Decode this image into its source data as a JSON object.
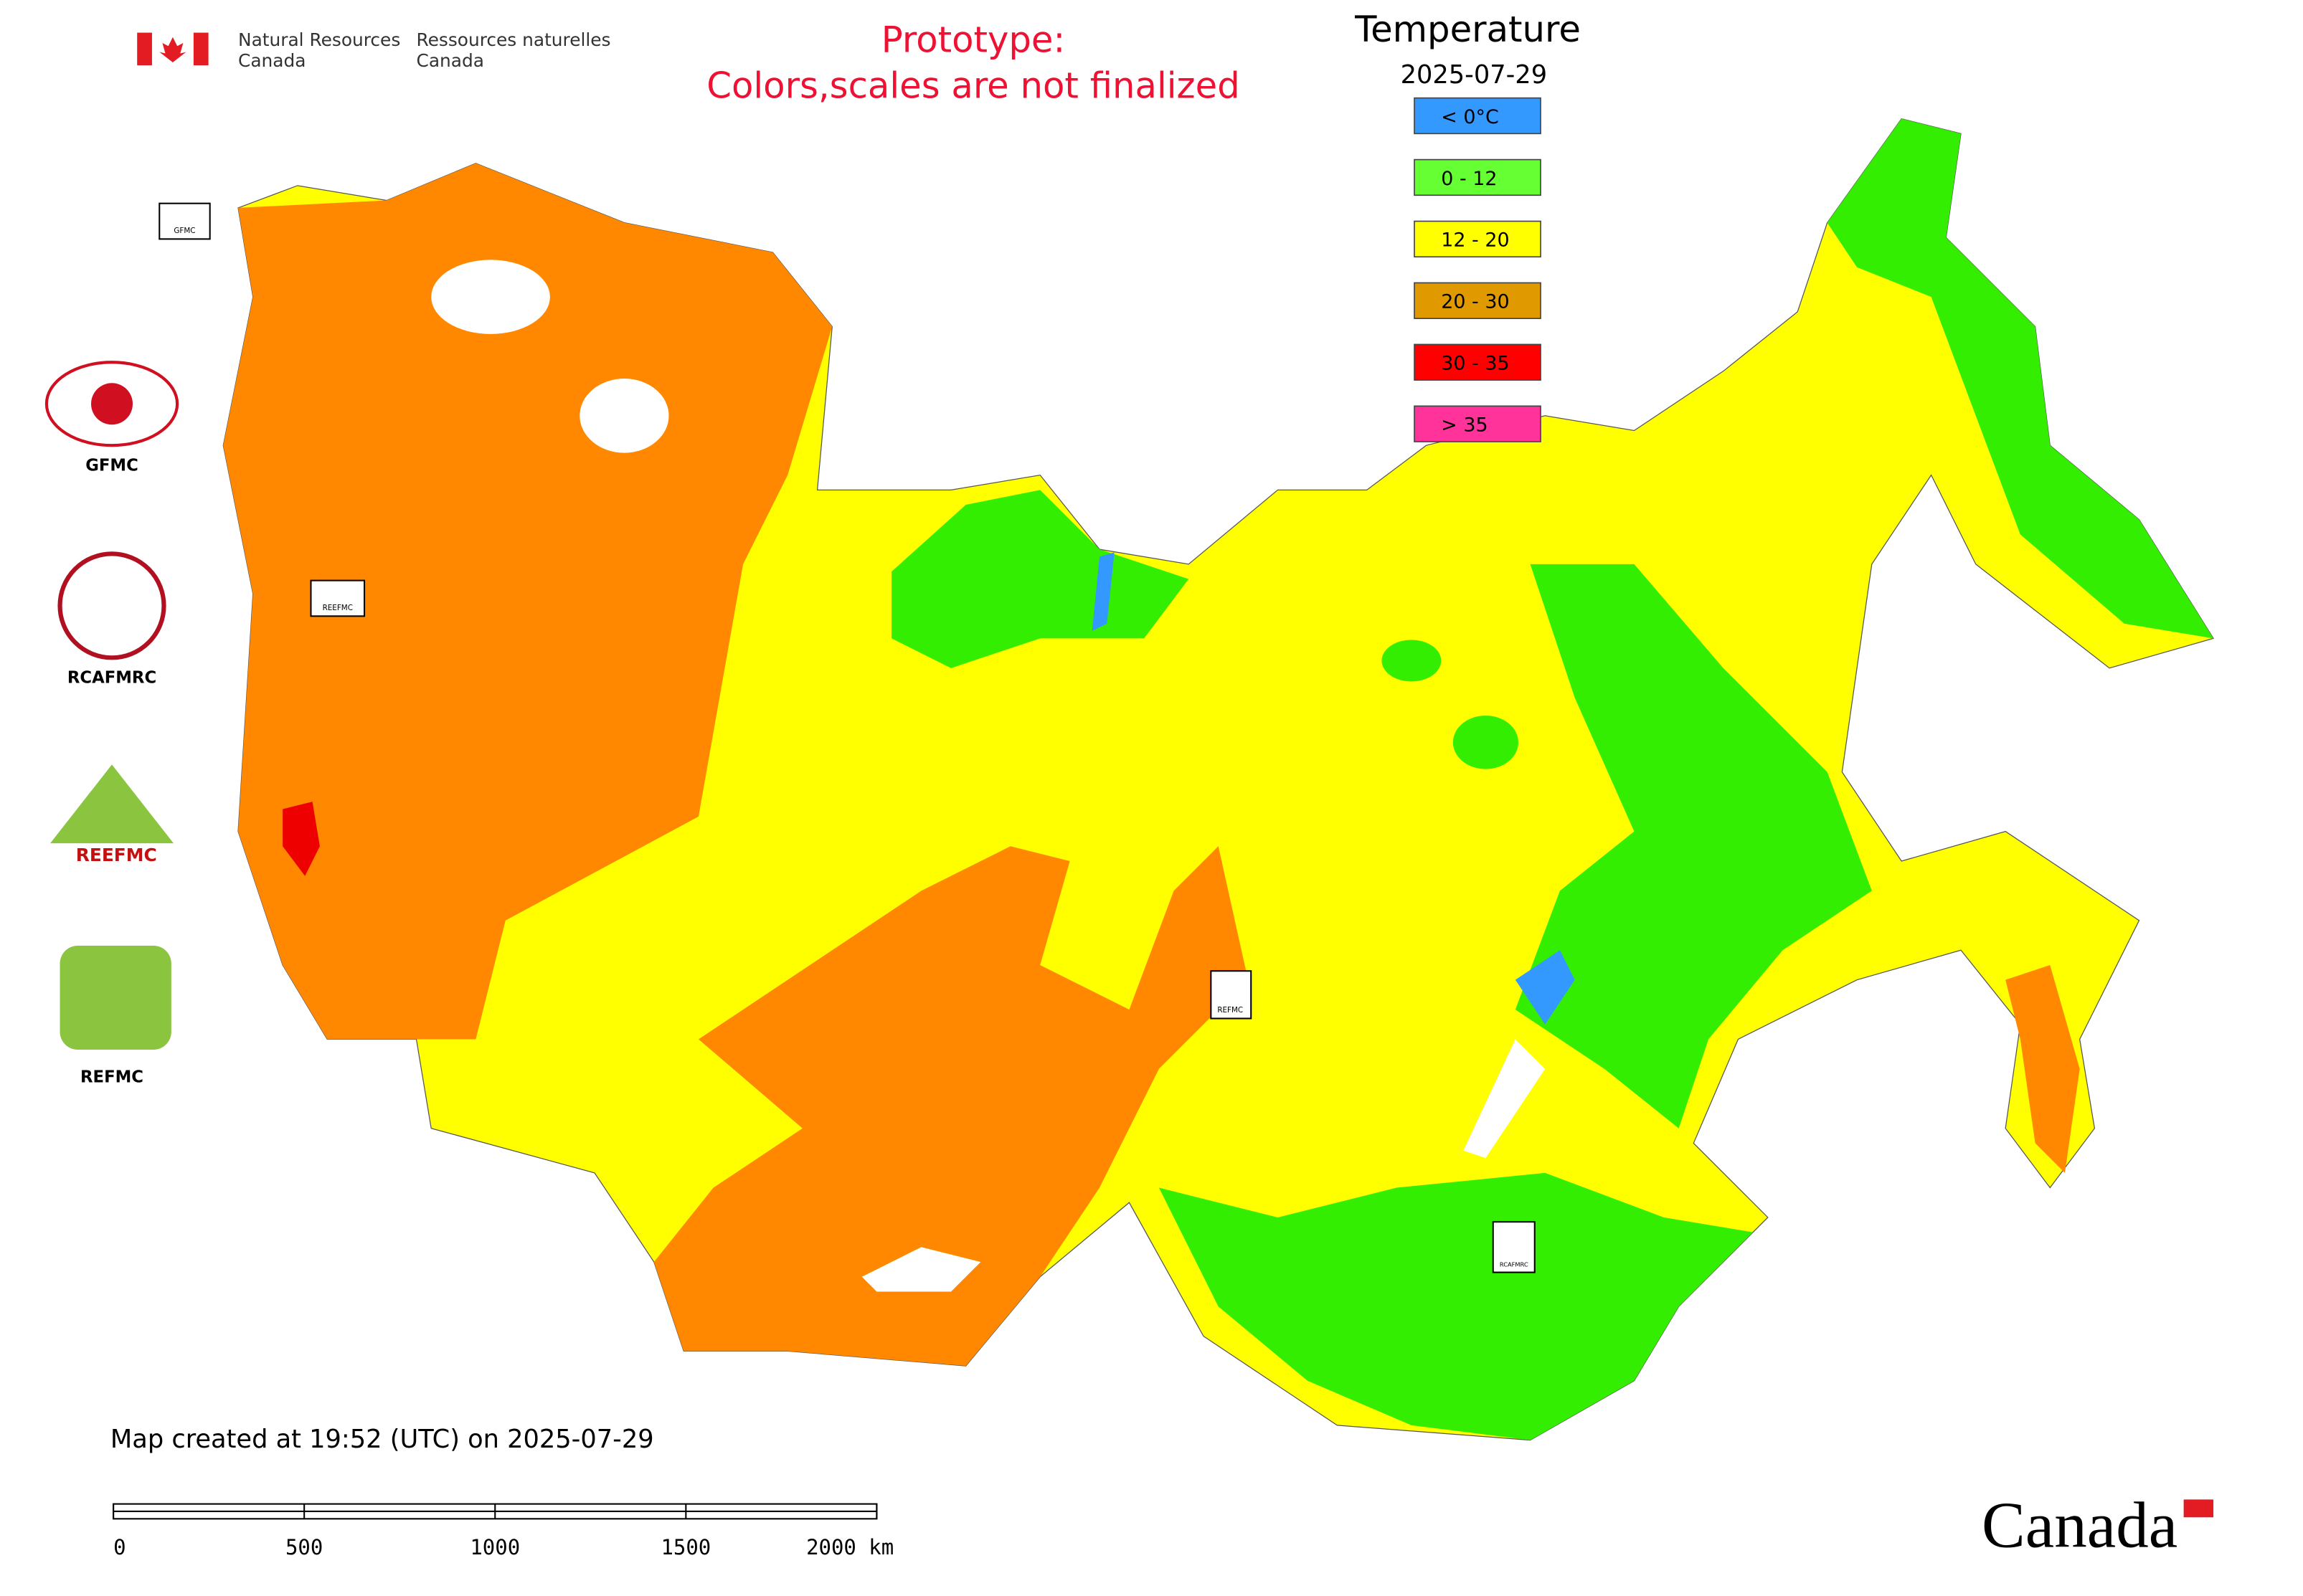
{
  "header": {
    "agency_en": [
      "Natural Resources",
      "Canada"
    ],
    "agency_fr": [
      "Ressources naturelles",
      "Canada"
    ],
    "notice": [
      "Prototype:",
      "Colors,scales are not finalized"
    ]
  },
  "legend": {
    "title": "Temperature",
    "date": "2025-07-29",
    "items": [
      {
        "label": "< 0°C",
        "color": "#3399ff"
      },
      {
        "label": "0 - 12",
        "color": "#66ff33"
      },
      {
        "label": "12 - 20",
        "color": "#ffff00"
      },
      {
        "label": "20 - 30",
        "color": "#e09a00"
      },
      {
        "label": "30 - 35",
        "color": "#ff0000"
      },
      {
        "label": "> 35",
        "color": "#ff3399"
      }
    ]
  },
  "centers": [
    "GFMC",
    "RCAFMRC",
    "REEFMC",
    "REFMC"
  ],
  "footer": {
    "created": "Map created at 19:52 (UTC) on 2025-07-29",
    "scale_labels": [
      "0",
      "500",
      "1000",
      "1500",
      "2000 km"
    ],
    "wordmark": "Canada"
  }
}
